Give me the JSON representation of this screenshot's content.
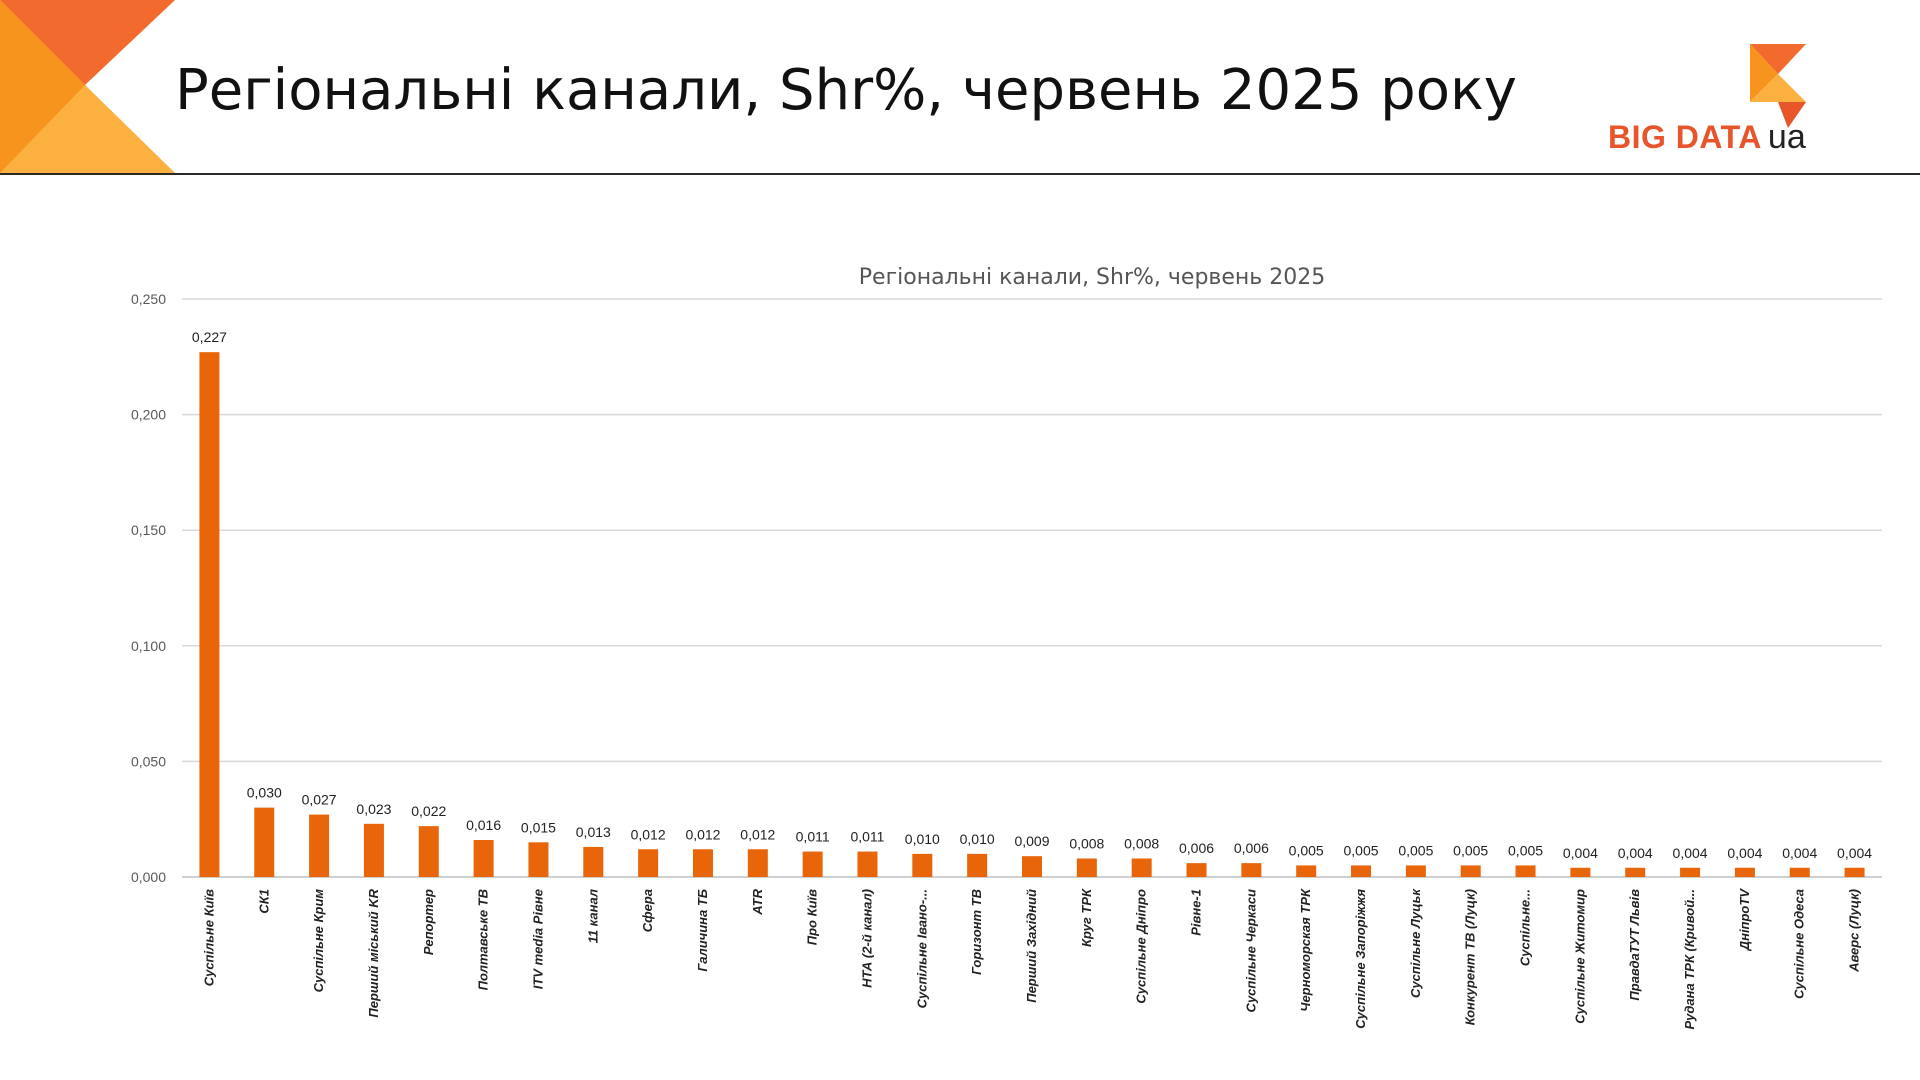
{
  "header": {
    "title": "Регіональні канали, Shr%, червень 2025 року",
    "logo_text": "BIG DATA",
    "logo_suffix": "ua"
  },
  "colors": {
    "bar": "#e8650a",
    "corner_dark": "#f26a2e",
    "corner_light": "#fbb040",
    "logo_accent": "#e8552a"
  },
  "icons": {
    "logo_mark": "orange-arrow-logo-icon",
    "corner": "orange-triangle-decoration"
  },
  "chart_data": {
    "type": "bar",
    "title": "Регіональні канали, Shr%, червень 2025",
    "xlabel": "",
    "ylabel": "",
    "ylim": [
      0,
      0.25
    ],
    "grid": true,
    "legend": "none",
    "y_ticks": [
      "0,000",
      "0,050",
      "0,100",
      "0,150",
      "0,200",
      "0,250"
    ],
    "categories": [
      "Суспільне Київ",
      "СК1",
      "Суспільне Крим",
      "Перший міський KR",
      "Репортер",
      "Полтавське ТВ",
      "ITV media Рівне",
      "11 канал",
      "Сфера",
      "Галичина ТБ",
      "ATR",
      "Про Київ",
      "НТА (2-й канал)",
      "Суспільне Івано-...",
      "Горизонт ТВ",
      "Перший Західний",
      "Круг ТРК",
      "Суспільне Дніпро",
      "Рівне-1",
      "Суспільне Черкаси",
      "Черноморская ТРК",
      "Суспільне Запоріжжя",
      "Суспільне Луцьк",
      "Конкурент ТВ (Луцк)",
      "Суспільне...",
      "Суспільне Житомир",
      "ПравдаТУТ Львів",
      "Рудана ТРК (Кривой...",
      "ДніпроTV",
      "Суспільне Одеса",
      "Аверс (Луцк)"
    ],
    "values": [
      0.227,
      0.03,
      0.027,
      0.023,
      0.022,
      0.016,
      0.015,
      0.013,
      0.012,
      0.012,
      0.012,
      0.011,
      0.011,
      0.01,
      0.01,
      0.009,
      0.008,
      0.008,
      0.006,
      0.006,
      0.005,
      0.005,
      0.005,
      0.005,
      0.005,
      0.004,
      0.004,
      0.004,
      0.004,
      0.004,
      0.004
    ],
    "data_labels": [
      "0,227",
      "0,030",
      "0,027",
      "0,023",
      "0,022",
      "0,016",
      "0,015",
      "0,013",
      "0,012",
      "0,012",
      "0,012",
      "0,011",
      "0,011",
      "0,010",
      "0,010",
      "0,009",
      "0,008",
      "0,008",
      "0,006",
      "0,006",
      "0,005",
      "0,005",
      "0,005",
      "0,005",
      "0,005",
      "0,004",
      "0,004",
      "0,004",
      "0,004",
      "0,004",
      "0,004"
    ]
  }
}
